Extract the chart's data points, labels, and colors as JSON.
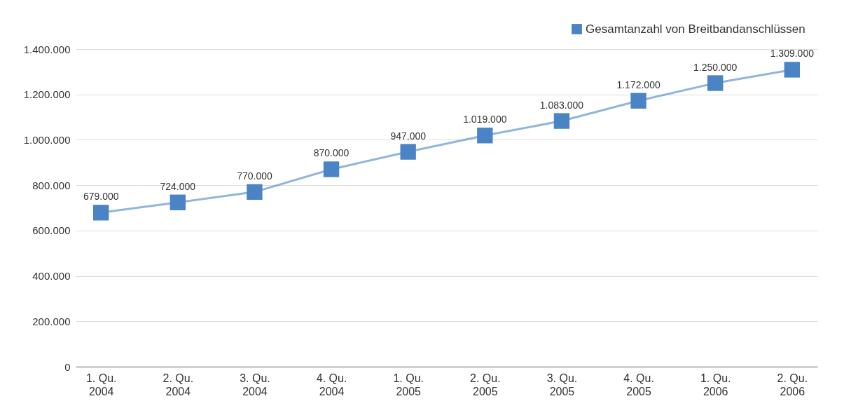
{
  "chart_data": {
    "type": "line",
    "categories": [
      "1. Qu.\n2004",
      "2. Qu.\n2004",
      "3. Qu.\n2004",
      "4. Qu.\n2004",
      "1. Qu.\n2005",
      "2. Qu.\n2005",
      "3. Qu.\n2005",
      "4. Qu.\n2005",
      "1. Qu.\n2006",
      "2. Qu.\n2006"
    ],
    "series": [
      {
        "name": "Gesamtanzahl von Breitbandanschlüssen",
        "color": "#4a84c4",
        "values": [
          679000,
          724000,
          770000,
          870000,
          947000,
          1019000,
          1083000,
          1172000,
          1250000,
          1309000
        ],
        "value_labels": [
          "679.000",
          "724.000",
          "770.000",
          "870.000",
          "947.000",
          "1.019.000",
          "1.083.000",
          "1.172.000",
          "1.250.000",
          "1.309.000"
        ]
      }
    ],
    "ylim": [
      0,
      1400000
    ],
    "yticks": [
      0,
      {
        "value": 200000,
        "label": "200.000"
      },
      {
        "value": 400000,
        "label": "400.000"
      },
      {
        "value": 600000,
        "label": "600.000"
      },
      {
        "value": 800000,
        "label": "800.000"
      },
      {
        "value": 1000000,
        "label": "1.000.000"
      },
      {
        "value": 1200000,
        "label": "1.200.000"
      },
      {
        "value": 1400000,
        "label": "1.400.000"
      }
    ],
    "grid": "y",
    "legend": "top right",
    "marker": "square",
    "line_style": "solid"
  }
}
